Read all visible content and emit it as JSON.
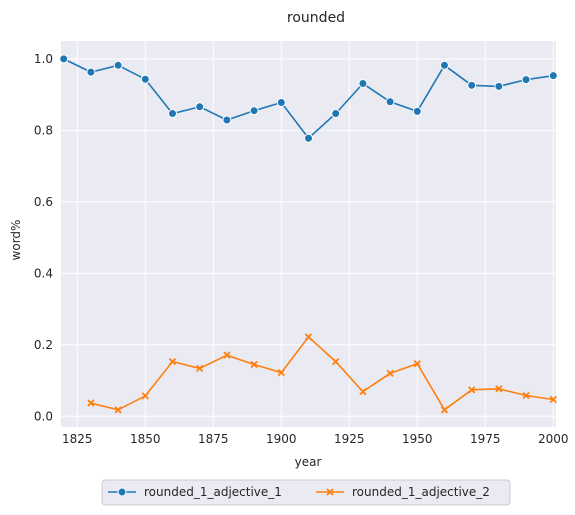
{
  "chart_data": {
    "type": "line",
    "title": "rounded",
    "xlabel": "year",
    "ylabel": "word%",
    "xlim": [
      1819,
      2001
    ],
    "ylim": [
      -0.03,
      1.05
    ],
    "xticks": [
      1825,
      1850,
      1875,
      1900,
      1925,
      1950,
      1975,
      2000
    ],
    "yticks": [
      0.0,
      0.2,
      0.4,
      0.6,
      0.8,
      1.0
    ],
    "grid": true,
    "legend_position": "bottom-center",
    "series": [
      {
        "name": "rounded_1_adjective_1",
        "color": "#1f77b4",
        "marker": "circle",
        "x": [
          1820,
          1830,
          1840,
          1850,
          1860,
          1870,
          1880,
          1890,
          1900,
          1910,
          1920,
          1930,
          1940,
          1950,
          1960,
          1970,
          1980,
          1990,
          2000
        ],
        "values": [
          1.0,
          0.963,
          0.982,
          0.943,
          0.847,
          0.866,
          0.829,
          0.855,
          0.878,
          0.778,
          0.847,
          0.931,
          0.88,
          0.853,
          0.982,
          0.926,
          0.923,
          0.942,
          0.953
        ]
      },
      {
        "name": "rounded_1_adjective_2",
        "color": "#ff7f0e",
        "marker": "x",
        "x": [
          1830,
          1840,
          1850,
          1860,
          1870,
          1880,
          1890,
          1900,
          1910,
          1920,
          1930,
          1940,
          1950,
          1960,
          1970,
          1980,
          1990,
          2000
        ],
        "values": [
          0.037,
          0.018,
          0.057,
          0.153,
          0.134,
          0.171,
          0.145,
          0.122,
          0.222,
          0.153,
          0.069,
          0.12,
          0.147,
          0.018,
          0.074,
          0.077,
          0.058,
          0.047
        ]
      }
    ]
  }
}
